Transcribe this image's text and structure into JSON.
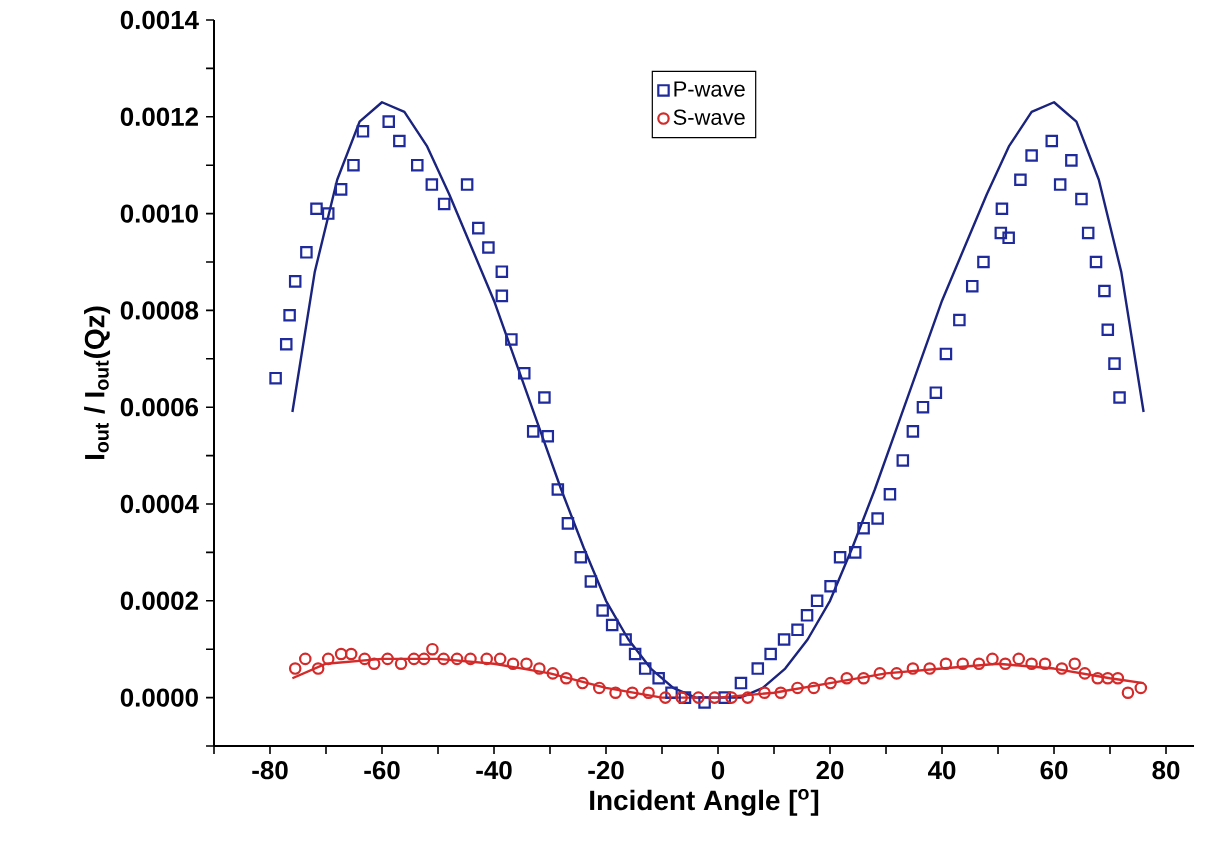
{
  "chart_data": {
    "type": "scatter",
    "xlabel": "Incident Angle [$^{o}$]",
    "ylabel": "I$_{out}$ / I$_{out}$(Qz)",
    "xlim": [
      -90,
      85
    ],
    "ylim": [
      -0.0001,
      0.0014
    ],
    "xticks": [
      {
        "value": -90,
        "label": null
      },
      -80,
      {
        "value": -70,
        "label": null
      },
      -60,
      {
        "value": -50,
        "label": null
      },
      -40,
      {
        "value": -30,
        "label": null
      },
      -20,
      {
        "value": -10,
        "label": null
      },
      0,
      {
        "value": 10,
        "label": null
      },
      20,
      {
        "value": 30,
        "label": null
      },
      40,
      {
        "value": 50,
        "label": null
      },
      60,
      {
        "value": 70,
        "label": null
      },
      80
    ],
    "yticks": [
      {
        "value": -0.0001,
        "label": null
      },
      {
        "value": 0,
        "label": "0.0000"
      },
      {
        "value": 0.0001,
        "label": null
      },
      {
        "value": 0.0002,
        "label": "0.0002"
      },
      {
        "value": 0.0003,
        "label": null
      },
      {
        "value": 0.0004,
        "label": "0.0004"
      },
      {
        "value": 0.0005,
        "label": null
      },
      {
        "value": 0.0006,
        "label": "0.0006"
      },
      {
        "value": 0.0007,
        "label": null
      },
      {
        "value": 0.0008,
        "label": "0.0008"
      },
      {
        "value": 0.0009,
        "label": null
      },
      {
        "value": 0.001,
        "label": "0.0010"
      },
      {
        "value": 0.0011,
        "label": null
      },
      {
        "value": 0.0012,
        "label": "0.0012"
      },
      {
        "value": 0.0013,
        "label": null
      },
      {
        "value": 0.0014,
        "label": "0.0014"
      }
    ],
    "legend": "top",
    "grid": false,
    "series": [
      {
        "name": "P-wave",
        "marker": "square",
        "color": "#1f2a9c",
        "x": [
          -79.0,
          -77.1,
          -76.5,
          -75.5,
          -73.5,
          -71.7,
          -69.6,
          -67.3,
          -65.1,
          -63.4,
          -58.8,
          -56.9,
          -53.7,
          -51.1,
          -48.9,
          -44.8,
          -42.8,
          -41.0,
          -38.6,
          -38.6,
          -36.9,
          -34.6,
          -33.0,
          -31.0,
          -30.4,
          -28.6,
          -26.8,
          -24.5,
          -22.7,
          -20.6,
          -18.9,
          -16.5,
          -14.8,
          -13.0,
          -10.6,
          -8.3,
          -5.9,
          -2.4,
          1.2,
          4.1,
          7.1,
          9.4,
          11.8,
          14.2,
          15.9,
          17.7,
          20.1,
          21.8,
          24.5,
          26.0,
          28.5,
          30.7,
          33.0,
          34.8,
          36.6,
          38.9,
          40.7,
          43.1,
          45.4,
          47.4,
          50.5,
          50.7,
          51.9,
          54.0,
          56.0,
          59.6,
          61.1,
          63.1,
          64.9,
          66.1,
          67.5,
          69.0,
          69.6,
          70.8,
          71.7
        ],
        "values": [
          0.00066,
          0.00073,
          0.00079,
          0.00086,
          0.00092,
          0.00101,
          0.001,
          0.00105,
          0.0011,
          0.00117,
          0.00119,
          0.00115,
          0.0011,
          0.00106,
          0.00102,
          0.00106,
          0.00097,
          0.00093,
          0.00088,
          0.00083,
          0.00074,
          0.00067,
          0.00055,
          0.00062,
          0.00054,
          0.00043,
          0.00036,
          0.00029,
          0.00024,
          0.00018,
          0.00015,
          0.00012,
          9e-05,
          6e-05,
          4e-05,
          1e-05,
          0.0,
          -1e-05,
          0.0,
          3e-05,
          6e-05,
          9e-05,
          0.00012,
          0.00014,
          0.00017,
          0.0002,
          0.00023,
          0.00029,
          0.0003,
          0.00035,
          0.00037,
          0.00042,
          0.00049,
          0.00055,
          0.0006,
          0.00063,
          0.00071,
          0.00078,
          0.00085,
          0.0009,
          0.00096,
          0.00101,
          0.00095,
          0.00107,
          0.00112,
          0.00115,
          0.00106,
          0.00111,
          0.00103,
          0.00096,
          0.0009,
          0.00084,
          0.00076,
          0.00069,
          0.00062
        ]
      },
      {
        "name": "S-wave",
        "marker": "circle",
        "color": "#d42a2a",
        "x": [
          -75.5,
          -73.7,
          -71.4,
          -69.6,
          -67.3,
          -65.5,
          -63.1,
          -61.4,
          -59.0,
          -56.6,
          -54.3,
          -52.5,
          -51.0,
          -49.0,
          -46.6,
          -44.2,
          -41.3,
          -38.9,
          -36.6,
          -34.2,
          -31.9,
          -29.5,
          -27.1,
          -24.2,
          -21.2,
          -18.3,
          -15.3,
          -12.4,
          -9.4,
          -6.5,
          -3.5,
          -0.6,
          2.4,
          5.3,
          8.3,
          11.2,
          14.2,
          17.1,
          20.1,
          23.0,
          26.0,
          28.9,
          31.9,
          34.8,
          37.8,
          40.7,
          43.7,
          46.6,
          49.0,
          51.3,
          53.7,
          56.0,
          58.4,
          61.4,
          63.7,
          65.5,
          67.8,
          69.6,
          71.4,
          73.2,
          75.5
        ],
        "values": [
          6e-05,
          8e-05,
          6e-05,
          8e-05,
          9e-05,
          9e-05,
          8e-05,
          7e-05,
          8e-05,
          7e-05,
          8e-05,
          8e-05,
          0.0001,
          8e-05,
          8e-05,
          8e-05,
          8e-05,
          8e-05,
          7e-05,
          7e-05,
          6e-05,
          5e-05,
          4e-05,
          3e-05,
          2e-05,
          1e-05,
          1e-05,
          1e-05,
          0.0,
          0.0,
          0.0,
          0.0,
          0.0,
          0.0,
          1e-05,
          1e-05,
          2e-05,
          2e-05,
          3e-05,
          4e-05,
          4e-05,
          5e-05,
          5e-05,
          6e-05,
          6e-05,
          7e-05,
          7e-05,
          7e-05,
          8e-05,
          7e-05,
          8e-05,
          7e-05,
          7e-05,
          6e-05,
          7e-05,
          5e-05,
          4e-05,
          4e-05,
          4e-05,
          1e-05,
          2e-05
        ]
      },
      {
        "type": "line",
        "marker": "none",
        "color": "#1a237e",
        "x": [
          -76,
          -72,
          -68,
          -64,
          -60,
          -56,
          -52,
          -48,
          -44,
          -40,
          -36,
          -32,
          -28,
          -24,
          -20,
          -16,
          -12,
          -8,
          -4,
          0,
          4,
          8,
          12,
          16,
          20,
          24,
          28,
          32,
          36,
          40,
          44,
          48,
          52,
          56,
          60,
          64,
          68,
          72,
          76
        ],
        "values": [
          0.00059,
          0.00088,
          0.00107,
          0.00119,
          0.00123,
          0.00121,
          0.00114,
          0.00104,
          0.00093,
          0.00082,
          0.00069,
          0.00056,
          0.00043,
          0.00031,
          0.0002,
          0.00012,
          6e-05,
          2e-05,
          0.0,
          0.0,
          0.0,
          2e-05,
          6e-05,
          0.00012,
          0.0002,
          0.00031,
          0.00043,
          0.00056,
          0.00069,
          0.00082,
          0.00093,
          0.00104,
          0.00114,
          0.00121,
          0.00123,
          0.00119,
          0.00107,
          0.00088,
          0.00059
        ]
      },
      {
        "type": "line",
        "marker": "none",
        "color": "#d42a2a",
        "x": [
          -76,
          -70,
          -60,
          -50,
          -40,
          -30,
          -20,
          -10,
          0,
          10,
          20,
          30,
          40,
          50,
          60,
          70,
          76
        ],
        "values": [
          4e-05,
          7e-05,
          8e-05,
          8e-05,
          7e-05,
          5e-05,
          2e-05,
          0.0,
          0.0,
          1e-05,
          3e-05,
          5e-05,
          6e-05,
          7e-05,
          6e-05,
          4e-05,
          3e-05
        ]
      }
    ]
  }
}
